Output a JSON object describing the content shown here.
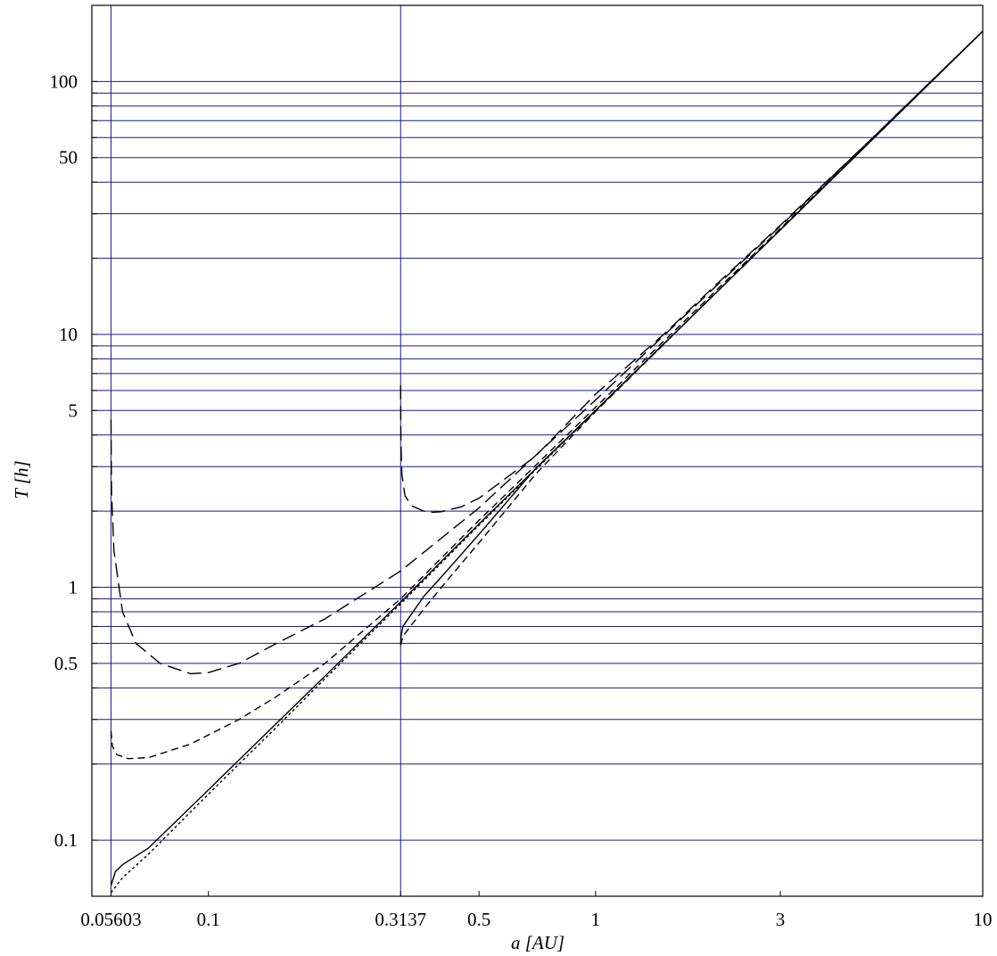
{
  "chart_data": {
    "type": "line",
    "xlabel": "a [AU]",
    "ylabel": "T [h]",
    "x_scale": "log",
    "y_scale": "log",
    "xlim": [
      0.05,
      10
    ],
    "ylim": [
      0.06,
      200
    ],
    "x_ticks": [
      {
        "value": 0.05603,
        "label": "0.05603"
      },
      {
        "value": 0.1,
        "label": "0.1"
      },
      {
        "value": 0.3137,
        "label": "0.3137"
      },
      {
        "value": 0.5,
        "label": "0.5"
      },
      {
        "value": 1,
        "label": "1"
      },
      {
        "value": 3,
        "label": "3"
      },
      {
        "value": 10,
        "label": "10"
      }
    ],
    "y_ticks": [
      {
        "value": 0.1,
        "label": "0.1"
      },
      {
        "value": 0.5,
        "label": "0.5"
      },
      {
        "value": 1,
        "label": "1"
      },
      {
        "value": 5,
        "label": "5"
      },
      {
        "value": 10,
        "label": "10"
      },
      {
        "value": 50,
        "label": "50"
      },
      {
        "value": 100,
        "label": "100"
      }
    ],
    "y_gridlines": [
      0.1,
      0.2,
      0.3,
      0.4,
      0.5,
      0.6,
      0.7,
      0.8,
      0.9,
      1,
      2,
      3,
      4,
      5,
      6,
      7,
      8,
      9,
      10,
      20,
      30,
      40,
      50,
      60,
      70,
      80,
      90,
      100
    ],
    "x_gridlines": [
      0.05603,
      0.3137
    ],
    "grid": true,
    "grid_color": "#1a1a8c",
    "line_color": "#000000",
    "series": [
      {
        "style": "solid",
        "x": [
          0.05603,
          0.0575,
          0.06,
          0.07,
          0.1,
          0.15,
          0.2,
          0.3137,
          0.5,
          1,
          2,
          3,
          5,
          10
        ],
        "y": [
          0.066,
          0.075,
          0.08,
          0.093,
          0.158,
          0.29,
          0.445,
          0.875,
          1.78,
          5.0,
          14.1,
          25.9,
          55.8,
          158
        ]
      },
      {
        "style": "dotted",
        "x": [
          0.05603,
          0.06,
          0.07,
          0.1,
          0.15,
          0.2,
          0.3137,
          0.5,
          1,
          2,
          3,
          5,
          10
        ],
        "y": [
          0.062,
          0.071,
          0.088,
          0.152,
          0.28,
          0.435,
          0.86,
          1.76,
          4.98,
          14.1,
          25.9,
          55.8,
          158
        ]
      },
      {
        "style": "dashed-short",
        "x": [
          0.05603,
          0.0565,
          0.058,
          0.062,
          0.07,
          0.09,
          0.12,
          0.15,
          0.2,
          0.3137,
          0.5,
          1,
          2,
          3,
          5,
          10
        ],
        "y": [
          0.27,
          0.235,
          0.218,
          0.21,
          0.212,
          0.24,
          0.3,
          0.37,
          0.5,
          0.9,
          1.84,
          5.15,
          14.4,
          26.2,
          56.1,
          158
        ]
      },
      {
        "style": "dashed-long",
        "x": [
          0.05603,
          0.0562,
          0.057,
          0.06,
          0.065,
          0.075,
          0.09,
          0.1,
          0.12,
          0.15,
          0.2,
          0.3137,
          0.5,
          1,
          2,
          3,
          5,
          10
        ],
        "y": [
          4.6,
          2.4,
          1.4,
          0.8,
          0.6,
          0.5,
          0.455,
          0.46,
          0.5,
          0.6,
          0.75,
          1.16,
          2.06,
          5.5,
          15.0,
          26.8,
          56.5,
          158
        ]
      },
      {
        "style": "solid",
        "x": [
          0.3137,
          0.3145,
          0.318,
          0.33,
          0.36,
          0.4,
          0.5,
          0.7,
          1,
          2,
          3,
          5,
          10
        ],
        "y": [
          0.59,
          0.64,
          0.7,
          0.76,
          0.92,
          1.1,
          1.62,
          2.95,
          5.0,
          14.1,
          25.9,
          55.8,
          158
        ]
      },
      {
        "style": "dashed-short",
        "x": [
          0.3137,
          0.318,
          0.33,
          0.36,
          0.4,
          0.5,
          0.7,
          1,
          2,
          3,
          5,
          10
        ],
        "y": [
          0.59,
          0.64,
          0.69,
          0.82,
          1.0,
          1.5,
          2.8,
          4.95,
          14.1,
          25.9,
          55.8,
          158
        ]
      },
      {
        "style": "dashed-long",
        "x": [
          0.3137,
          0.3142,
          0.316,
          0.322,
          0.335,
          0.36,
          0.38,
          0.4,
          0.45,
          0.5,
          0.7,
          1,
          1.5,
          2,
          3,
          5,
          10
        ],
        "y": [
          6.3,
          3.8,
          2.8,
          2.3,
          2.1,
          2.0,
          1.98,
          1.99,
          2.08,
          2.25,
          3.3,
          5.8,
          10.0,
          15.2,
          27.0,
          56.6,
          158
        ]
      }
    ]
  }
}
